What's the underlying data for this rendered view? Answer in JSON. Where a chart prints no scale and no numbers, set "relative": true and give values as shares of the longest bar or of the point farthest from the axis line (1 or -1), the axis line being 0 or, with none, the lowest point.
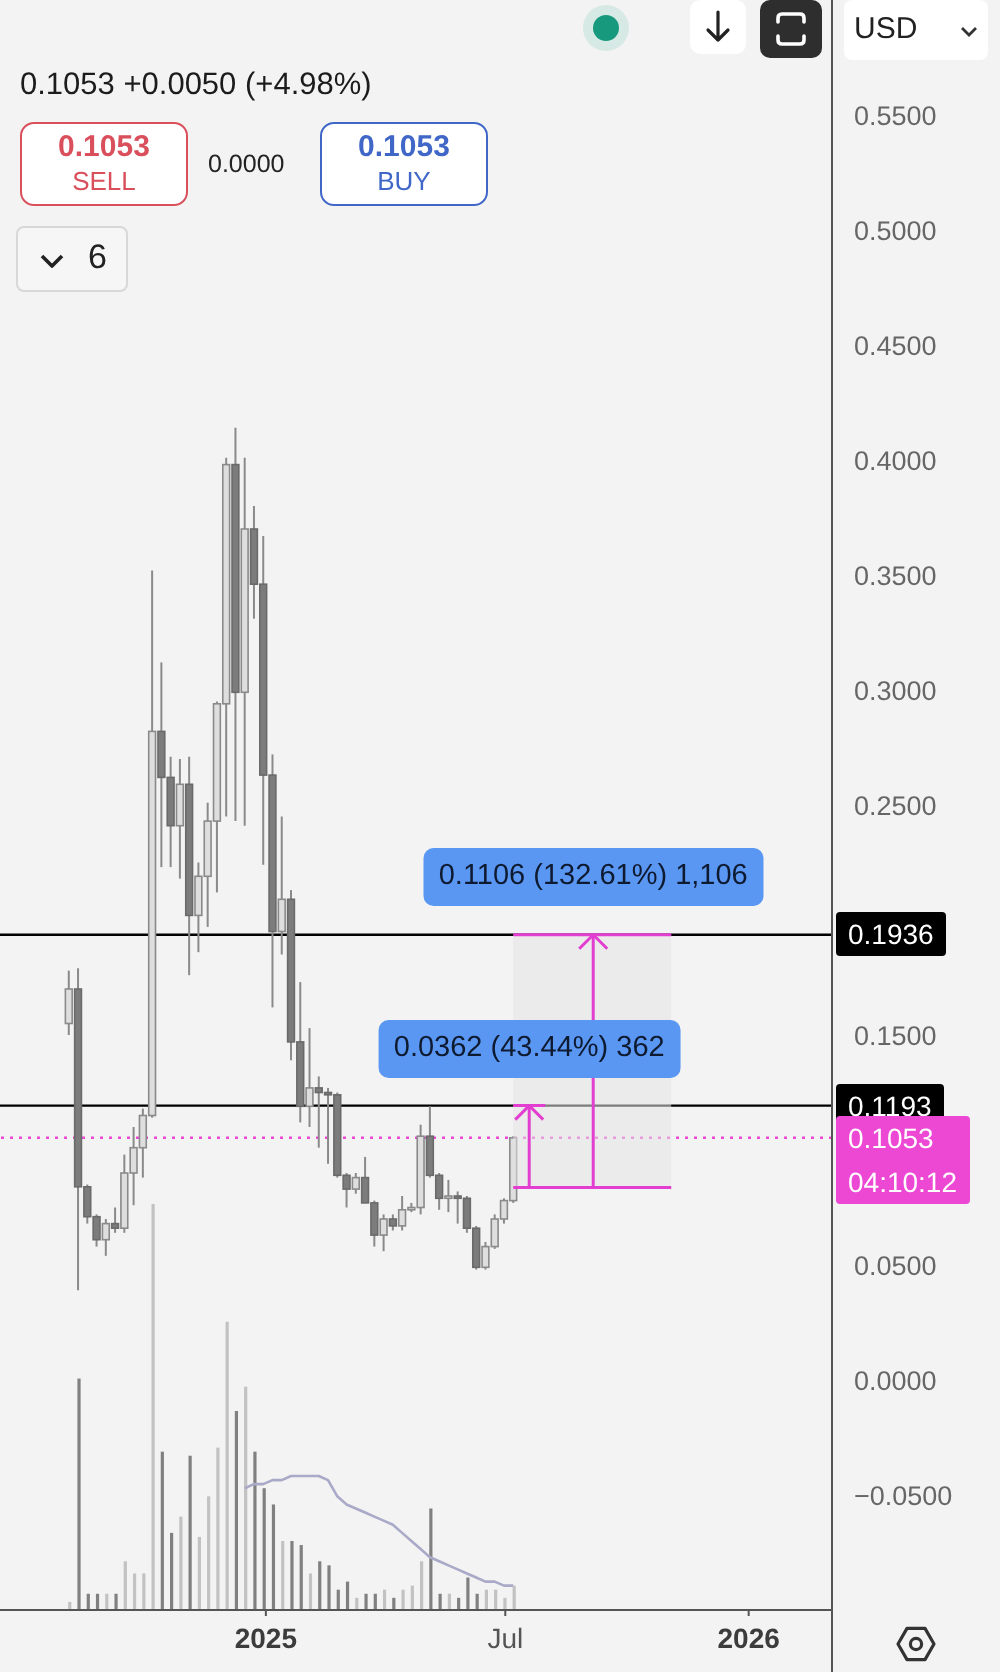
{
  "chart_data": [
    {
      "type": "candlestick",
      "subtitle": "0.1053 +0.0050 (+4.98%)",
      "x": [
        "2024-08-05",
        "2024-08-12",
        "2024-08-19",
        "2024-08-26",
        "2024-09-02",
        "2024-09-09",
        "2024-09-16",
        "2024-09-23",
        "2024-09-30",
        "2024-10-07",
        "2024-10-14",
        "2024-10-21",
        "2024-10-28",
        "2024-11-04",
        "2024-11-11",
        "2024-11-18",
        "2024-11-25",
        "2024-12-02",
        "2024-12-09",
        "2024-12-16",
        "2024-12-23",
        "2024-12-30",
        "2025-01-06",
        "2025-01-13",
        "2025-01-20",
        "2025-01-27",
        "2025-02-03",
        "2025-02-10",
        "2025-02-17",
        "2025-02-24",
        "2025-03-03",
        "2025-03-10",
        "2025-03-17",
        "2025-03-24",
        "2025-03-31",
        "2025-04-07",
        "2025-04-14",
        "2025-04-21",
        "2025-04-28",
        "2025-05-05",
        "2025-05-12",
        "2025-05-19",
        "2025-05-26",
        "2025-06-02",
        "2025-06-09",
        "2025-06-16",
        "2025-06-23",
        "2025-06-30",
        "2025-07-07"
      ],
      "ohlc": [
        [
          0.155,
          0.178,
          0.15,
          0.17
        ],
        [
          0.17,
          0.179,
          0.039,
          0.084
        ],
        [
          0.084,
          0.085,
          0.068,
          0.071
        ],
        [
          0.071,
          0.072,
          0.058,
          0.061
        ],
        [
          0.061,
          0.07,
          0.054,
          0.068
        ],
        [
          0.068,
          0.075,
          0.064,
          0.066
        ],
        [
          0.066,
          0.098,
          0.064,
          0.09
        ],
        [
          0.09,
          0.11,
          0.076,
          0.101
        ],
        [
          0.101,
          0.118,
          0.088,
          0.115
        ],
        [
          0.115,
          0.352,
          0.114,
          0.282
        ],
        [
          0.282,
          0.312,
          0.223,
          0.262
        ],
        [
          0.262,
          0.271,
          0.223,
          0.241
        ],
        [
          0.241,
          0.27,
          0.218,
          0.259
        ],
        [
          0.259,
          0.271,
          0.176,
          0.202
        ],
        [
          0.202,
          0.225,
          0.186,
          0.219
        ],
        [
          0.219,
          0.251,
          0.197,
          0.243
        ],
        [
          0.243,
          0.295,
          0.212,
          0.294
        ],
        [
          0.294,
          0.401,
          0.245,
          0.398
        ],
        [
          0.398,
          0.414,
          0.243,
          0.299
        ],
        [
          0.299,
          0.401,
          0.241,
          0.37
        ],
        [
          0.37,
          0.38,
          0.331,
          0.346
        ],
        [
          0.346,
          0.367,
          0.224,
          0.263
        ],
        [
          0.263,
          0.272,
          0.162,
          0.195
        ],
        [
          0.195,
          0.245,
          0.185,
          0.209
        ],
        [
          0.209,
          0.213,
          0.139,
          0.147
        ],
        [
          0.147,
          0.173,
          0.112,
          0.119
        ],
        [
          0.119,
          0.153,
          0.11,
          0.127
        ],
        [
          0.127,
          0.132,
          0.101,
          0.125
        ],
        [
          0.125,
          0.127,
          0.094,
          0.124
        ],
        [
          0.124,
          0.125,
          0.088,
          0.089
        ],
        [
          0.089,
          0.09,
          0.075,
          0.083
        ],
        [
          0.083,
          0.09,
          0.081,
          0.088
        ],
        [
          0.088,
          0.097,
          0.077,
          0.077
        ],
        [
          0.077,
          0.078,
          0.058,
          0.063
        ],
        [
          0.063,
          0.072,
          0.056,
          0.07
        ],
        [
          0.07,
          0.072,
          0.065,
          0.067
        ],
        [
          0.067,
          0.08,
          0.065,
          0.074
        ],
        [
          0.074,
          0.077,
          0.073,
          0.075
        ],
        [
          0.075,
          0.111,
          0.072,
          0.106
        ],
        [
          0.106,
          0.119,
          0.088,
          0.089
        ],
        [
          0.089,
          0.09,
          0.074,
          0.079
        ],
        [
          0.079,
          0.087,
          0.073,
          0.08
        ],
        [
          0.08,
          0.082,
          0.068,
          0.079
        ],
        [
          0.079,
          0.08,
          0.064,
          0.066
        ],
        [
          0.066,
          0.067,
          0.048,
          0.049
        ],
        [
          0.049,
          0.06,
          0.048,
          0.058
        ],
        [
          0.058,
          0.072,
          0.057,
          0.07
        ],
        [
          0.07,
          0.079,
          0.068,
          0.078
        ],
        [
          0.078,
          0.106,
          0.077,
          0.1053
        ]
      ],
      "xlim": [
        "2024-06-14",
        "2026-03-05"
      ],
      "xticks": [
        {
          "value": "2025-01-01",
          "label": "2025"
        },
        {
          "value": "2025-07-01",
          "label": "Jul"
        },
        {
          "value": "2026-01-01",
          "label": "2026"
        }
      ],
      "ylim": [
        -0.1,
        0.6
      ],
      "yticks": [
        {
          "value": 0.55,
          "label": "0.5500"
        },
        {
          "value": 0.5,
          "label": "0.5000"
        },
        {
          "value": 0.45,
          "label": "0.4500"
        },
        {
          "value": 0.4,
          "label": "0.4000"
        },
        {
          "value": 0.35,
          "label": "0.3500"
        },
        {
          "value": 0.3,
          "label": "0.3000"
        },
        {
          "value": 0.25,
          "label": "0.2500"
        },
        {
          "value": 0.15,
          "label": "0.1500"
        },
        {
          "value": 0.05,
          "label": "0.0500"
        },
        {
          "value": 0,
          "label": "0.0000"
        },
        {
          "value": -0.05,
          "label": "−0.0500"
        }
      ],
      "ref_lines": [
        {
          "axis": "y",
          "value": 0.1936,
          "label": "0.1936",
          "color": "#000000"
        },
        {
          "axis": "y",
          "value": 0.1193,
          "label": "0.1193",
          "color": "#000000"
        },
        {
          "axis": "y",
          "value": 0.1053,
          "label": "0.1053",
          "color": "#ec48d4",
          "line_style": "dotted"
        }
      ],
      "annotations": [
        "0.1106 (132.61%) 1,106",
        "0.0362 (43.44%) 362",
        "04:10:12",
        "0.1053",
        "SELL",
        "0.0000",
        "0.1053",
        "BUY",
        "6",
        "USD"
      ]
    },
    {
      "type": "bar",
      "relative": true,
      "tick_labels": false,
      "x": [
        "2024-08-05",
        "2024-08-12",
        "2024-08-19",
        "2024-08-26",
        "2024-09-02",
        "2024-09-09",
        "2024-09-16",
        "2024-09-23",
        "2024-09-30",
        "2024-10-07",
        "2024-10-14",
        "2024-10-21",
        "2024-10-28",
        "2024-11-04",
        "2024-11-11",
        "2024-11-18",
        "2024-11-25",
        "2024-12-02",
        "2024-12-09",
        "2024-12-16",
        "2024-12-23",
        "2024-12-30",
        "2025-01-06",
        "2025-01-13",
        "2025-01-20",
        "2025-01-27",
        "2025-02-03",
        "2025-02-10",
        "2025-02-17",
        "2025-02-24",
        "2025-03-03",
        "2025-03-10",
        "2025-03-17",
        "2025-03-24",
        "2025-03-31",
        "2025-04-07",
        "2025-04-14",
        "2025-04-21",
        "2025-04-28",
        "2025-05-05",
        "2025-05-12",
        "2025-05-19",
        "2025-05-26",
        "2025-06-02",
        "2025-06-09",
        "2025-06-16",
        "2025-06-23",
        "2025-06-30",
        "2025-07-07"
      ],
      "xlim": [
        "2024-06-14",
        "2026-03-05"
      ],
      "series": [
        {
          "type": "bar",
          "values": [
            0.02,
            0.57,
            0.04,
            0.04,
            0.04,
            0.04,
            0.12,
            0.09,
            0.09,
            1,
            0.39,
            0.19,
            0.23,
            0.38,
            0.18,
            0.28,
            0.4,
            0.71,
            0.49,
            0.55,
            0.39,
            0.3,
            0.26,
            0.17,
            0.17,
            0.16,
            0.09,
            0.12,
            0.11,
            0.05,
            0.07,
            0.03,
            0.04,
            0.04,
            0.05,
            0.03,
            0.05,
            0.06,
            0.12,
            0.25,
            0.04,
            0.04,
            0.03,
            0.08,
            0.04,
            0.05,
            0.05,
            0.03,
            0.06
          ],
          "colors": [
            "#c2c2c2",
            "#808080",
            "#808080",
            "#808080",
            "#c2c2c2",
            "#808080",
            "#c2c2c2",
            "#c2c2c2",
            "#c2c2c2",
            "#c2c2c2",
            "#808080",
            "#808080",
            "#c2c2c2",
            "#808080",
            "#c2c2c2",
            "#c2c2c2",
            "#c2c2c2",
            "#c2c2c2",
            "#808080",
            "#c2c2c2",
            "#808080",
            "#808080",
            "#808080",
            "#c2c2c2",
            "#808080",
            "#808080",
            "#c2c2c2",
            "#808080",
            "#808080",
            "#808080",
            "#808080",
            "#c2c2c2",
            "#808080",
            "#808080",
            "#c2c2c2",
            "#808080",
            "#c2c2c2",
            "#c2c2c2",
            "#c2c2c2",
            "#808080",
            "#808080",
            "#c2c2c2",
            "#808080",
            "#808080",
            "#808080",
            "#c2c2c2",
            "#c2c2c2",
            "#c2c2c2",
            "#c2c2c2"
          ]
        },
        {
          "type": "line",
          "color": "#a9a9c8",
          "values": [
            null,
            null,
            null,
            null,
            null,
            null,
            null,
            null,
            null,
            null,
            null,
            null,
            null,
            null,
            null,
            null,
            null,
            null,
            null,
            0.3,
            0.31,
            0.31,
            0.32,
            0.32,
            0.33,
            0.33,
            0.33,
            0.33,
            0.32,
            0.28,
            0.26,
            0.25,
            0.24,
            0.23,
            0.22,
            0.21,
            0.19,
            0.17,
            0.15,
            0.13,
            0.12,
            0.11,
            0.1,
            0.09,
            0.08,
            0.07,
            0.07,
            0.06,
            0.06
          ]
        }
      ]
    }
  ]
}
